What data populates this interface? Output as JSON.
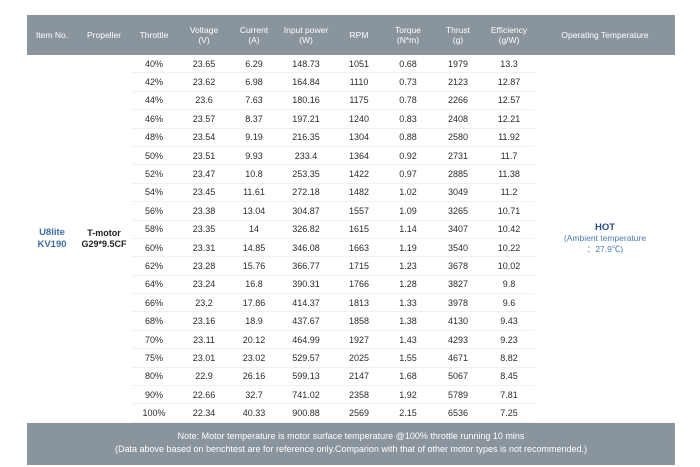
{
  "headers": [
    {
      "line1": "Item No.",
      "line2": ""
    },
    {
      "line1": "Propeller",
      "line2": ""
    },
    {
      "line1": "Throttle",
      "line2": ""
    },
    {
      "line1": "Voltage",
      "line2": "(V)"
    },
    {
      "line1": "Current",
      "line2": "(A)"
    },
    {
      "line1": "Input power",
      "line2": "(W)"
    },
    {
      "line1": "RPM",
      "line2": ""
    },
    {
      "line1": "Torque",
      "line2": "(N*m)"
    },
    {
      "line1": "Thrust",
      "line2": "(g)"
    },
    {
      "line1": "Efficiency",
      "line2": "(g/W)"
    },
    {
      "line1": "Operating Temperature",
      "line2": ""
    }
  ],
  "item": {
    "line1": "U8lite",
    "line2": "KV190"
  },
  "propeller": {
    "line1": "T-motor",
    "line2": "G29*9.5CF"
  },
  "temperature": {
    "status": "HOT",
    "line1": "(Ambient temperature",
    "line2": "：27.9℃)"
  },
  "rows": [
    [
      "40%",
      "23.65",
      "6.29",
      "148.73",
      "1051",
      "0.68",
      "1979",
      "13.3"
    ],
    [
      "42%",
      "23.62",
      "6.98",
      "164.84",
      "1110",
      "0.73",
      "2123",
      "12.87"
    ],
    [
      "44%",
      "23.6",
      "7.63",
      "180.16",
      "1175",
      "0.78",
      "2266",
      "12.57"
    ],
    [
      "46%",
      "23.57",
      "8.37",
      "197.21",
      "1240",
      "0.83",
      "2408",
      "12.21"
    ],
    [
      "48%",
      "23.54",
      "9.19",
      "216.35",
      "1304",
      "0.88",
      "2580",
      "11.92"
    ],
    [
      "50%",
      "23.51",
      "9.93",
      "233.4",
      "1364",
      "0.92",
      "2731",
      "11.7"
    ],
    [
      "52%",
      "23.47",
      "10.8",
      "253.35",
      "1422",
      "0.97",
      "2885",
      "11.38"
    ],
    [
      "54%",
      "23.45",
      "11.61",
      "272.18",
      "1482",
      "1.02",
      "3049",
      "11.2"
    ],
    [
      "56%",
      "23.38",
      "13.04",
      "304.87",
      "1557",
      "1.09",
      "3265",
      "10.71"
    ],
    [
      "58%",
      "23.35",
      "14",
      "326.82",
      "1615",
      "1.14",
      "3407",
      "10.42"
    ],
    [
      "60%",
      "23.31",
      "14.85",
      "346.08",
      "1663",
      "1.19",
      "3540",
      "10.22"
    ],
    [
      "62%",
      "23.28",
      "15.76",
      "366.77",
      "1715",
      "1.23",
      "3678",
      "10.02"
    ],
    [
      "64%",
      "23.24",
      "16.8",
      "390.31",
      "1766",
      "1.28",
      "3827",
      "9.8"
    ],
    [
      "66%",
      "23.2",
      "17.86",
      "414.37",
      "1813",
      "1.33",
      "3978",
      "9.6"
    ],
    [
      "68%",
      "23.16",
      "18.9",
      "437.67",
      "1858",
      "1.38",
      "4130",
      "9.43"
    ],
    [
      "70%",
      "23.11",
      "20.12",
      "464.99",
      "1927",
      "1.43",
      "4293",
      "9.23"
    ],
    [
      "75%",
      "23.01",
      "23.02",
      "529.57",
      "2025",
      "1.55",
      "4671",
      "8.82"
    ],
    [
      "80%",
      "22.9",
      "26.16",
      "599.13",
      "2147",
      "1.68",
      "5067",
      "8.45"
    ],
    [
      "90%",
      "22.66",
      "32.7",
      "741.02",
      "2358",
      "1.92",
      "5789",
      "7.81"
    ],
    [
      "100%",
      "22.34",
      "40.33",
      "900.88",
      "2569",
      "2.15",
      "6536",
      "7.25"
    ]
  ],
  "note": {
    "line1": "Note: Motor temperature is motor surface temperature @100% throttle running 10 mins",
    "line2": "(Data above based on benchtest are for reference only.Comparion with that of other motor types is not recommended.)"
  }
}
